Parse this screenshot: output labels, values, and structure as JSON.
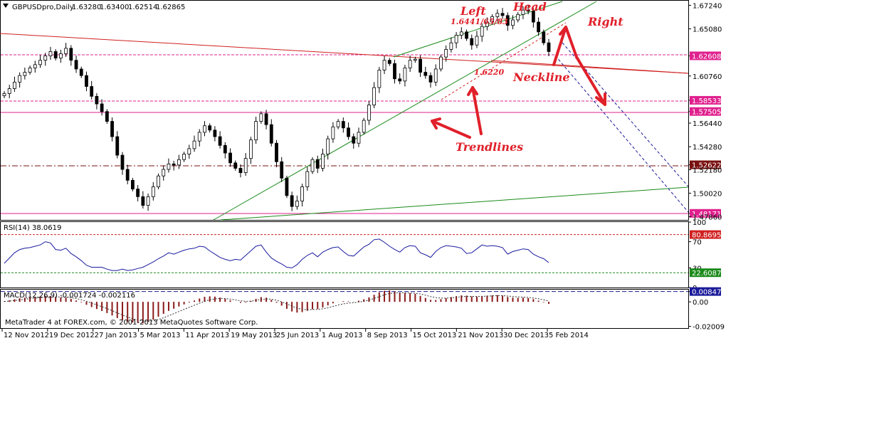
{
  "chart_header": {
    "symbol": "GBPUSDpro,Daily",
    "open": "1.63280",
    "high": "1.63400",
    "low": "1.62514",
    "close": "1.62865"
  },
  "rsi_label": "RSI(14) 38.0619",
  "macd_label": "MACD(12,26,9) -0.001724 -0.002116",
  "copyright": "MetaTrader 4 at FOREX.com, © 2001-2013 MetaQuotes Software Corp.",
  "colors": {
    "candle": "#000000",
    "rsi_line": "#1a1aa0",
    "macd_hist": "#8b1a1a",
    "trendline": "#1a8a1a",
    "resistance": "#d02020",
    "pink_level": "#e0208e",
    "annotation": "#e0202a",
    "badge_dark": "#7a1010",
    "badge_blue": "#1a1a9a",
    "badge_green": "#1a8a1a"
  },
  "chart_data": [
    {
      "type": "candlestick",
      "title": "GBPUSDpro,Daily",
      "ylim": [
        1.4757,
        1.6766
      ],
      "y_ticks": [
        "1.67240",
        "1.65080",
        "1.62608",
        "1.60760",
        "1.58533",
        "1.57505",
        "1.56440",
        "1.54280",
        "1.52622",
        "1.52180",
        "1.50020",
        "1.48171",
        "1.47860"
      ],
      "x_ticks": [
        "12 Nov 2012",
        "19 Dec 2012",
        "27 Jan 2013",
        "5 Mar 2013",
        "11 Apr 2013",
        "19 May 2013",
        "25 Jun 2013",
        "1 Aug 2013",
        "8 Sep 2013",
        "15 Oct 2013",
        "21 Nov 2013",
        "30 Dec 2013",
        "5 Feb 2014"
      ],
      "closes": [
        1.5915,
        1.596,
        1.602,
        1.608,
        1.611,
        1.615,
        1.618,
        1.622,
        1.626,
        1.63,
        1.624,
        1.628,
        1.633,
        1.622,
        1.614,
        1.608,
        1.598,
        1.589,
        1.582,
        1.575,
        1.566,
        1.552,
        1.535,
        1.522,
        1.512,
        1.504,
        1.497,
        1.489,
        1.497,
        1.506,
        1.516,
        1.522,
        1.527,
        1.526,
        1.531,
        1.536,
        1.541,
        1.548,
        1.556,
        1.562,
        1.558,
        1.552,
        1.544,
        1.537,
        1.528,
        1.523,
        1.519,
        1.532,
        1.549,
        1.566,
        1.573,
        1.563,
        1.546,
        1.529,
        1.514,
        1.498,
        1.488,
        1.493,
        1.506,
        1.52,
        1.531,
        1.523,
        1.536,
        1.55,
        1.561,
        1.566,
        1.56,
        1.552,
        1.546,
        1.556,
        1.567,
        1.581,
        1.597,
        1.613,
        1.622,
        1.619,
        1.605,
        1.603,
        1.615,
        1.622,
        1.623,
        1.611,
        1.608,
        1.602,
        1.614,
        1.625,
        1.632,
        1.638,
        1.645,
        1.648,
        1.642,
        1.636,
        1.644,
        1.653,
        1.657,
        1.662,
        1.665,
        1.663,
        1.654,
        1.659,
        1.664,
        1.668,
        1.667,
        1.657,
        1.648,
        1.638,
        1.63
      ],
      "levels": [
        {
          "label": "1.62608",
          "value": 1.62608
        },
        {
          "label": "1.58533",
          "value": 1.58533
        },
        {
          "label": "1.57505",
          "value": 1.57505
        },
        {
          "label": "1.52622",
          "value": 1.52622
        },
        {
          "label": "1.48171",
          "value": 1.48171
        }
      ]
    },
    {
      "type": "line",
      "title": "RSI(14) 38.0619",
      "ylim": [
        0,
        100
      ],
      "y_ticks": [
        "100",
        "70",
        "30",
        "0"
      ],
      "levels": [
        {
          "label": "80.86956",
          "value": 80.86956
        },
        {
          "label": "22.60870",
          "value": 22.6087
        }
      ],
      "values": [
        37,
        45,
        53,
        58,
        60,
        61,
        63,
        65,
        70,
        68,
        58,
        57,
        60,
        52,
        47,
        41,
        34,
        31,
        31,
        31,
        28,
        26,
        26,
        28,
        26,
        27,
        29,
        31,
        35,
        39,
        44,
        48,
        53,
        51,
        54,
        57,
        59,
        60,
        63,
        62,
        56,
        51,
        46,
        43,
        41,
        43,
        42,
        49,
        56,
        63,
        65,
        54,
        45,
        40,
        36,
        31,
        30,
        35,
        43,
        49,
        53,
        47,
        54,
        58,
        61,
        62,
        55,
        49,
        48,
        55,
        62,
        66,
        73,
        74,
        69,
        63,
        58,
        54,
        61,
        64,
        63,
        53,
        50,
        46,
        55,
        61,
        64,
        63,
        62,
        60,
        52,
        53,
        59,
        65,
        63,
        64,
        63,
        61,
        51,
        55,
        57,
        59,
        58,
        51,
        47,
        44,
        38
      ]
    },
    {
      "type": "bar",
      "title": "MACD(12,26,9) -0.001724 -0.002116",
      "ylim": [
        -0.0215,
        0.01
      ],
      "y_ticks": [
        "0.00847",
        "0.00",
        "-0.02009"
      ],
      "levels": [
        {
          "label": "0.00847",
          "value": 0.00847
        }
      ],
      "values": [
        0.0004,
        0.0012,
        0.0021,
        0.0029,
        0.0034,
        0.0038,
        0.0041,
        0.0044,
        0.0049,
        0.0048,
        0.004,
        0.0036,
        0.0034,
        0.0024,
        0.0011,
        -0.0005,
        -0.0024,
        -0.0043,
        -0.0059,
        -0.0075,
        -0.0092,
        -0.0112,
        -0.0133,
        -0.015,
        -0.0162,
        -0.0169,
        -0.0173,
        -0.0175,
        -0.0163,
        -0.0146,
        -0.0122,
        -0.0098,
        -0.0074,
        -0.0056,
        -0.0038,
        -0.0021,
        -0.0006,
        0.0011,
        0.0027,
        0.0041,
        0.0045,
        0.0043,
        0.0035,
        0.0025,
        0.0012,
        0.0,
        -0.0008,
        -0.0005,
        0.0008,
        0.0025,
        0.0039,
        0.0034,
        0.0016,
        -0.0007,
        -0.0031,
        -0.0057,
        -0.0079,
        -0.0088,
        -0.0084,
        -0.0073,
        -0.0061,
        -0.0058,
        -0.0046,
        -0.0029,
        -0.0012,
        0.0001,
        0.0005,
        0.0004,
        0.0002,
        0.0009,
        0.0021,
        0.0037,
        0.0058,
        0.0078,
        0.0091,
        0.0094,
        0.0085,
        0.0075,
        0.0073,
        0.0071,
        0.0066,
        0.0049,
        0.0032,
        0.0016,
        0.0015,
        0.0022,
        0.003,
        0.0039,
        0.0047,
        0.0053,
        0.0051,
        0.0044,
        0.0043,
        0.0047,
        0.0051,
        0.0054,
        0.0055,
        0.0051,
        0.004,
        0.0035,
        0.0033,
        0.0034,
        0.0031,
        0.0022,
        0.001,
        -0.0004,
        -0.0017
      ]
    }
  ],
  "annotations": {
    "left": "Left",
    "left_price": "1.6441/65/83",
    "head": "Head",
    "right": "Right",
    "neckline": "Neckline",
    "low_price": "1.6220",
    "trendlines": "Trendlines"
  }
}
